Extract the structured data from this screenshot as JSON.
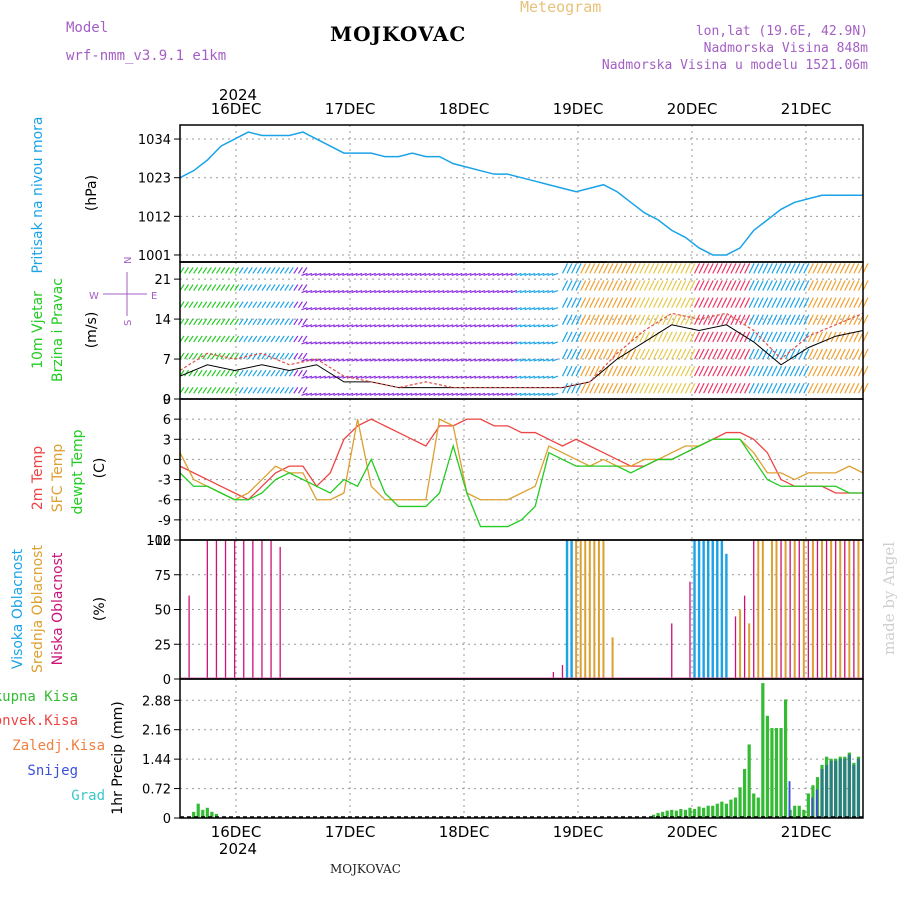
{
  "header": {
    "model_label": "Model",
    "model_value": "wrf-nmm_v3.9.1  e1km",
    "title": "MOJKOVAC",
    "meteogram": "Meteogram",
    "lonlat": "lon,lat (19.6E, 42.9N)",
    "elev": "Nadmorska Visina 848m",
    "elev_model": "Nadmorska Visina u modelu 1521.06m",
    "credit": "made by Angel",
    "footer": "MOJKOVAC"
  },
  "time_axis": {
    "year": "2024",
    "days": [
      "16DEC",
      "17DEC",
      "18DEC",
      "19DEC",
      "20DEC",
      "21DEC"
    ]
  },
  "colors": {
    "pressure": "#1ba3e8",
    "t2m": "#ee4444",
    "sfc": "#dda030",
    "dewpt": "#22cc22",
    "high_cloud": "#1ba3e8",
    "mid_cloud": "#dda030",
    "low_cloud": "#cc1177",
    "total_precip": "#33bb33",
    "conv_precip": "#ee4444",
    "snow": "#3b4fd8",
    "grad": "#3cc8c8"
  },
  "chart_data": [
    {
      "type": "line",
      "ylabel_main": "Pritisak na nivou mora",
      "ylabel_unit": "(hPa)",
      "yticks": [
        "1034",
        "1023",
        "1012",
        "1001"
      ],
      "ylim": [
        999,
        1038
      ],
      "x": [
        0,
        3,
        6,
        9,
        12,
        15,
        18,
        21,
        24,
        27,
        30,
        33,
        36,
        39,
        42,
        45,
        48,
        51,
        54,
        57,
        60,
        63,
        66,
        69,
        72,
        75,
        78,
        81,
        84,
        87,
        90,
        93,
        96,
        99,
        102,
        105,
        108,
        111,
        114,
        117,
        120,
        123,
        126,
        129,
        132,
        135,
        138,
        141,
        144,
        147,
        150
      ],
      "series": [
        {
          "name": "",
          "values": [
            1023,
            1025,
            1028,
            1032,
            1034,
            1036,
            1035,
            1035,
            1035,
            1036,
            1034,
            1032,
            1030,
            1030,
            1030,
            1029,
            1029,
            1030,
            1029,
            1029,
            1027,
            1026,
            1025,
            1024,
            1024,
            1023,
            1022,
            1021,
            1020,
            1019,
            1020,
            1021,
            1019,
            1016,
            1013,
            1011,
            1008,
            1006,
            1003,
            1001,
            1001,
            1003,
            1008,
            1011,
            1014,
            1016,
            1017,
            1018,
            1018,
            1018,
            1018
          ]
        }
      ]
    },
    {
      "type": "line",
      "ylabel_main": "10m Vjetar",
      "ylabel_main2": "Brzina i Pravac",
      "ylabel_unit": "(m/s)",
      "compass": {
        "n": "N",
        "s": "S",
        "w": "W",
        "e": "E"
      },
      "yticks": [
        "21",
        "14",
        "7",
        "0"
      ],
      "ylim": [
        0,
        24
      ],
      "x": [
        0,
        6,
        12,
        18,
        24,
        30,
        36,
        42,
        48,
        54,
        60,
        66,
        72,
        78,
        84,
        90,
        96,
        102,
        108,
        114,
        120,
        126,
        132,
        138,
        144,
        150
      ],
      "series": [
        {
          "name": "",
          "values": [
            4,
            6,
            5,
            6,
            5,
            6,
            3,
            3,
            2,
            2,
            2,
            2,
            2,
            2,
            2,
            3,
            7,
            10,
            13,
            12,
            13,
            10,
            6,
            9,
            11,
            12
          ]
        },
        {
          "name": "",
          "values": [
            5,
            8,
            7,
            8,
            6,
            7,
            4,
            3,
            2,
            3,
            2,
            2,
            2,
            2,
            2,
            3,
            8,
            12,
            15,
            14,
            15,
            12,
            7,
            11,
            13,
            15
          ]
        }
      ],
      "arrow_band_colors": [
        "#22cc22",
        "#1ba3e8",
        "#8a2be2",
        "#8a2be2",
        "#8a2be2",
        "#8a2be2",
        "#1ba3e8",
        "#f0a030",
        "#e6c84a",
        "#ee3366",
        "#1ba3e8",
        "#f0a030"
      ]
    },
    {
      "type": "line",
      "ylabel_main": "2m Temp",
      "ylabel_main2": "SFC Temp",
      "ylabel_main3": "dewpt Temp",
      "ylabel_unit": "(C)",
      "yticks": [
        "9",
        "6",
        "3",
        "0",
        "-3",
        "-6",
        "-9",
        "-12"
      ],
      "ylim": [
        -12,
        9
      ],
      "x": [
        0,
        3,
        6,
        9,
        12,
        15,
        18,
        21,
        24,
        27,
        30,
        33,
        36,
        39,
        42,
        45,
        48,
        51,
        54,
        57,
        60,
        63,
        66,
        69,
        72,
        75,
        78,
        81,
        84,
        87,
        90,
        93,
        96,
        99,
        102,
        105,
        108,
        111,
        114,
        117,
        120,
        123,
        126,
        129,
        132,
        135,
        138,
        141,
        144,
        147,
        150
      ],
      "series": [
        {
          "name": "",
          "values": [
            -1,
            -2,
            -3,
            -4,
            -5,
            -6,
            -4,
            -2,
            -1,
            -1,
            -4,
            -2,
            3,
            5,
            6,
            5,
            4,
            3,
            2,
            5,
            5,
            6,
            6,
            5,
            5,
            4,
            4,
            3,
            2,
            3,
            2,
            1,
            0,
            -1,
            -1,
            0,
            0,
            1,
            2,
            3,
            4,
            4,
            3,
            1,
            -3,
            -4,
            -4,
            -4,
            -5,
            -5,
            -5
          ]
        },
        {
          "name": "",
          "values": [
            1,
            -3,
            -4,
            -5,
            -6,
            -5,
            -3,
            -1,
            -2,
            -2,
            -6,
            -6,
            -5,
            6,
            -4,
            -6,
            -6,
            -6,
            -6,
            6,
            5,
            -5,
            -6,
            -6,
            -6,
            -5,
            -4,
            2,
            1,
            0,
            -1,
            0,
            -1,
            -1,
            0,
            0,
            1,
            2,
            2,
            3,
            3,
            3,
            1,
            -2,
            -2,
            -3,
            -2,
            -2,
            -2,
            -1,
            -2
          ]
        },
        {
          "name": "",
          "values": [
            -2,
            -4,
            -4,
            -5,
            -6,
            -6,
            -5,
            -3,
            -2,
            -3,
            -4,
            -5,
            -3,
            -4,
            0,
            -5,
            -7,
            -7,
            -7,
            -5,
            2,
            -5,
            -10,
            -10,
            -10,
            -9,
            -7,
            1,
            0,
            -1,
            -1,
            -1,
            -1,
            -2,
            -1,
            0,
            0,
            1,
            2,
            3,
            3,
            3,
            0,
            -3,
            -4,
            -4,
            -4,
            -4,
            -4,
            -5,
            -5
          ]
        }
      ]
    },
    {
      "type": "bar",
      "ylabel_main": "Visoka Oblacnost",
      "ylabel_main2": "Srednja Oblacnost",
      "ylabel_main3": "Niska Oblacnost",
      "ylabel_unit": "(%)",
      "yticks": [
        "100",
        "75",
        "50",
        "25",
        "0"
      ],
      "ylim": [
        0,
        100
      ],
      "low": [
        [
          2,
          60
        ],
        [
          6,
          100
        ],
        [
          8,
          100
        ],
        [
          10,
          100
        ],
        [
          12,
          100
        ],
        [
          14,
          100
        ],
        [
          16,
          100
        ],
        [
          18,
          100
        ],
        [
          20,
          100
        ],
        [
          22,
          95
        ],
        [
          82,
          5
        ],
        [
          84,
          10
        ],
        [
          108,
          40
        ],
        [
          112,
          70
        ],
        [
          114,
          100
        ],
        [
          116,
          100
        ],
        [
          118,
          100
        ],
        [
          122,
          45
        ],
        [
          124,
          60
        ],
        [
          126,
          100
        ],
        [
          128,
          100
        ],
        [
          130,
          100
        ],
        [
          132,
          100
        ],
        [
          134,
          100
        ],
        [
          136,
          100
        ],
        [
          138,
          100
        ],
        [
          140,
          100
        ],
        [
          142,
          100
        ],
        [
          144,
          100
        ],
        [
          146,
          100
        ],
        [
          148,
          100
        ],
        [
          150,
          100
        ]
      ],
      "mid": [
        [
          85,
          100
        ],
        [
          86,
          100
        ],
        [
          87,
          100
        ],
        [
          88,
          100
        ],
        [
          89,
          100
        ],
        [
          90,
          100
        ],
        [
          91,
          100
        ],
        [
          92,
          100
        ],
        [
          93,
          100
        ],
        [
          95,
          30
        ],
        [
          114,
          100
        ],
        [
          115,
          95
        ],
        [
          116,
          100
        ],
        [
          117,
          100
        ],
        [
          118,
          100
        ],
        [
          120,
          90
        ],
        [
          123,
          50
        ],
        [
          125,
          40
        ],
        [
          127,
          100
        ],
        [
          128,
          100
        ],
        [
          130,
          100
        ],
        [
          131,
          100
        ],
        [
          133,
          100
        ],
        [
          135,
          100
        ],
        [
          137,
          100
        ],
        [
          139,
          100
        ],
        [
          141,
          100
        ],
        [
          143,
          100
        ],
        [
          145,
          100
        ],
        [
          147,
          100
        ],
        [
          149,
          100
        ]
      ],
      "high": [
        [
          85,
          100
        ],
        [
          86,
          100
        ],
        [
          113,
          100
        ],
        [
          114,
          100
        ],
        [
          115,
          100
        ],
        [
          116,
          100
        ],
        [
          117,
          100
        ],
        [
          118,
          100
        ],
        [
          119,
          100
        ],
        [
          120,
          90
        ]
      ]
    },
    {
      "type": "bar",
      "legend": [
        "Ukupna Kisa",
        "Konvek.Kisa",
        "Zaledj.Kisa",
        "Snijeg",
        "Grad"
      ],
      "ylabel_main": "1hr Precip",
      "ylabel_unit": "(mm)",
      "yticks": [
        "2.88",
        "2.16",
        "1.44",
        "0.72",
        "0"
      ],
      "ylim": [
        0,
        3.4
      ],
      "total": [
        [
          3,
          0.15
        ],
        [
          4,
          0.35
        ],
        [
          5,
          0.2
        ],
        [
          6,
          0.25
        ],
        [
          7,
          0.15
        ],
        [
          8,
          0.1
        ],
        [
          11,
          0.02
        ],
        [
          104,
          0.08
        ],
        [
          105,
          0.12
        ],
        [
          106,
          0.15
        ],
        [
          107,
          0.18
        ],
        [
          108,
          0.2
        ],
        [
          109,
          0.18
        ],
        [
          110,
          0.22
        ],
        [
          111,
          0.2
        ],
        [
          112,
          0.25
        ],
        [
          113,
          0.22
        ],
        [
          114,
          0.28
        ],
        [
          115,
          0.25
        ],
        [
          116,
          0.3
        ],
        [
          117,
          0.3
        ],
        [
          118,
          0.35
        ],
        [
          119,
          0.4
        ],
        [
          120,
          0.35
        ],
        [
          121,
          0.45
        ],
        [
          122,
          0.5
        ],
        [
          123,
          0.75
        ],
        [
          124,
          1.2
        ],
        [
          125,
          1.8
        ],
        [
          126,
          0.6
        ],
        [
          127,
          0.5
        ],
        [
          128,
          3.3
        ],
        [
          129,
          2.5
        ],
        [
          130,
          2.2
        ],
        [
          131,
          2.2
        ],
        [
          132,
          2.2
        ],
        [
          133,
          2.9
        ],
        [
          134,
          0.2
        ],
        [
          135,
          0.3
        ],
        [
          136,
          0.3
        ],
        [
          137,
          0.2
        ],
        [
          138,
          0.6
        ],
        [
          139,
          0.8
        ],
        [
          140,
          1.0
        ],
        [
          141,
          1.3
        ],
        [
          142,
          1.5
        ],
        [
          143,
          1.45
        ],
        [
          144,
          1.45
        ],
        [
          145,
          1.5
        ],
        [
          146,
          1.5
        ],
        [
          147,
          1.6
        ],
        [
          148,
          1.35
        ],
        [
          149,
          1.5
        ]
      ],
      "grad": [
        [
          141,
          1.2
        ],
        [
          142,
          1.3
        ],
        [
          143,
          1.4
        ],
        [
          144,
          1.4
        ],
        [
          145,
          1.45
        ],
        [
          146,
          1.45
        ],
        [
          147,
          1.55
        ],
        [
          148,
          1.3
        ],
        [
          149,
          1.45
        ]
      ],
      "snow": [
        [
          134,
          0.9
        ],
        [
          139,
          0.5
        ],
        [
          140,
          0.7
        ]
      ]
    }
  ]
}
